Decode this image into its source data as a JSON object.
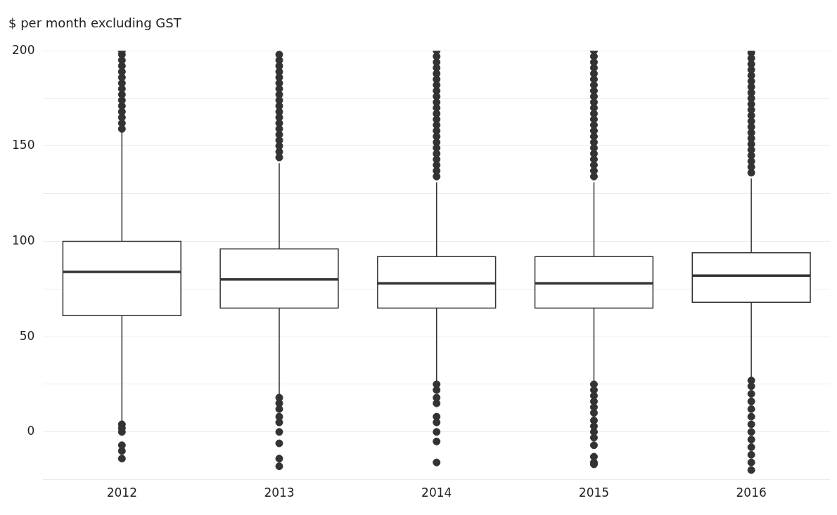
{
  "chart_data": {
    "type": "box",
    "ylabel": "$ per month excluding GST",
    "categories": [
      "2012",
      "2013",
      "2014",
      "2015",
      "2016"
    ],
    "boxes": [
      {
        "low": 5,
        "q1": 61,
        "median": 84,
        "q3": 100,
        "high": 157,
        "outliers": [
          159,
          162,
          165,
          168,
          171,
          174,
          177,
          180,
          183,
          186,
          189,
          192,
          195,
          198,
          200,
          4,
          2,
          0,
          -7,
          -10,
          -14
        ]
      },
      {
        "low": 19,
        "q1": 65,
        "median": 80,
        "q3": 96,
        "high": 141,
        "outliers": [
          144,
          147,
          150,
          153,
          156,
          159,
          162,
          165,
          168,
          171,
          174,
          177,
          180,
          183,
          186,
          189,
          192,
          195,
          198,
          18,
          15,
          12,
          8,
          5,
          0,
          -6,
          -14,
          -18
        ]
      },
      {
        "low": 26,
        "q1": 65,
        "median": 78,
        "q3": 92,
        "high": 131,
        "outliers": [
          134,
          137,
          140,
          143,
          146,
          149,
          152,
          155,
          158,
          161,
          164,
          167,
          170,
          173,
          176,
          179,
          182,
          185,
          188,
          191,
          194,
          197,
          200,
          25,
          22,
          18,
          15,
          8,
          5,
          0,
          -5,
          -16
        ]
      },
      {
        "low": 26,
        "q1": 65,
        "median": 78,
        "q3": 92,
        "high": 131,
        "outliers": [
          134,
          137,
          140,
          143,
          146,
          149,
          152,
          155,
          158,
          161,
          164,
          167,
          170,
          173,
          176,
          179,
          182,
          185,
          188,
          191,
          194,
          197,
          200,
          25,
          22,
          19,
          16,
          13,
          10,
          6,
          3,
          0,
          -3,
          -7,
          -13,
          -16,
          -17
        ]
      },
      {
        "low": 28,
        "q1": 68,
        "median": 82,
        "q3": 94,
        "high": 133,
        "outliers": [
          136,
          139,
          142,
          145,
          148,
          151,
          154,
          157,
          160,
          163,
          166,
          169,
          172,
          175,
          178,
          181,
          184,
          187,
          190,
          193,
          196,
          199,
          27,
          24,
          20,
          16,
          12,
          8,
          4,
          0,
          -4,
          -8,
          -12,
          -16,
          -20
        ]
      }
    ],
    "ylim": [
      -25,
      200
    ],
    "yticks": [
      {
        "value": -25,
        "label": null
      },
      0,
      {
        "value": 25,
        "label": null
      },
      50,
      {
        "value": 75,
        "label": null
      },
      100,
      {
        "value": 125,
        "label": null
      },
      150,
      {
        "value": 175,
        "label": null
      },
      200
    ],
    "grid": "y"
  }
}
